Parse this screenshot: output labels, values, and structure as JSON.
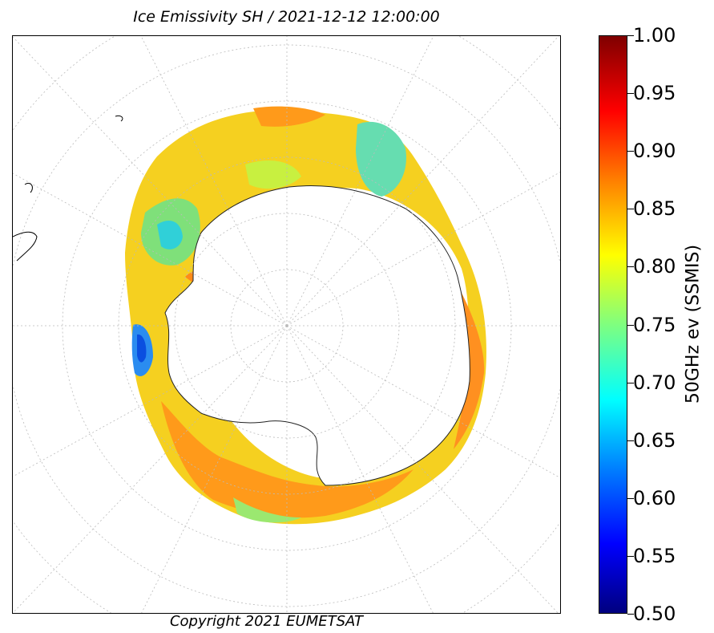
{
  "map": {
    "title": "Ice Emissivity SH / 2021-12-12 12:00:00",
    "copyright": "Copyright 2021 EUMETSAT",
    "projection": "south-polar-stereographic",
    "graticule": "dotted",
    "colorbar": {
      "label": "50GHz ev (SSMIS)",
      "min": 0.5,
      "max": 1.0,
      "colormap": "jet",
      "ticks": [
        "0.50",
        "0.55",
        "0.60",
        "0.65",
        "0.70",
        "0.75",
        "0.80",
        "0.85",
        "0.90",
        "0.95",
        "1.00"
      ]
    }
  }
}
